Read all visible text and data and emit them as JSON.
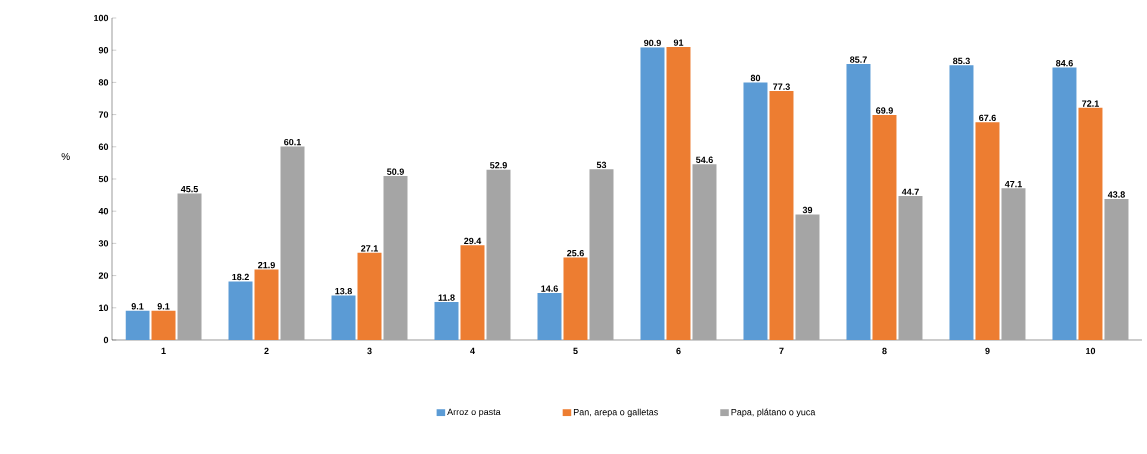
{
  "chart_data": {
    "type": "bar",
    "ylabel": "%",
    "categories": [
      "1",
      "2",
      "3",
      "4",
      "5",
      "6",
      "7",
      "8",
      "9",
      "10"
    ],
    "series": [
      {
        "name": "Arroz o pasta",
        "color": "#5b9bd5",
        "values": [
          9.1,
          18.2,
          13.8,
          11.8,
          14.6,
          90.9,
          80,
          85.7,
          85.3,
          84.6
        ]
      },
      {
        "name": "Pan, arepa o galletas",
        "color": "#ed7d31",
        "values": [
          9.1,
          21.9,
          27.1,
          29.4,
          25.6,
          91,
          77.3,
          69.9,
          67.6,
          72.1
        ]
      },
      {
        "name": "Papa, plátano o yuca",
        "color": "#a5a5a5",
        "values": [
          45.5,
          60.1,
          50.9,
          52.9,
          53,
          54.6,
          39,
          44.7,
          47.1,
          43.8
        ]
      }
    ],
    "ylim": [
      0,
      100
    ],
    "yticks": [
      0,
      10,
      20,
      30,
      40,
      50,
      60,
      70,
      80,
      90,
      100
    ],
    "data_labels": true,
    "grid": false,
    "legend": "bottom"
  }
}
